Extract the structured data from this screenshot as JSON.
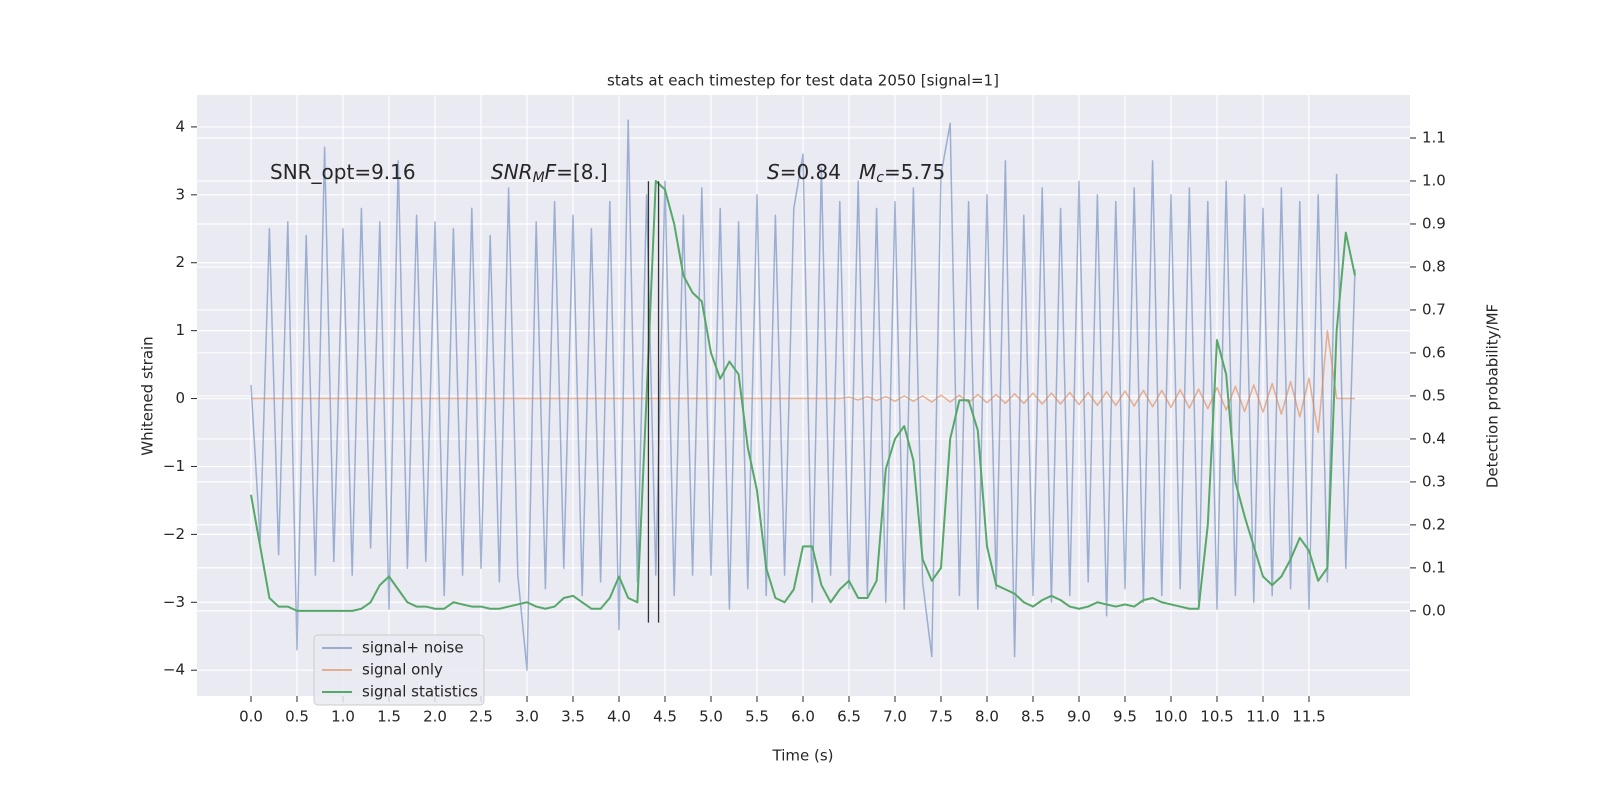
{
  "chart_data": {
    "type": "line",
    "title": "stats at each timestep for test data 2050 [signal=1]",
    "xlabel": "Time (s)",
    "ylabel": "Whitened strain",
    "y2label": "Detection probability/MF",
    "x": [
      0,
      0.1,
      0.2,
      0.3,
      0.4,
      0.5,
      0.6,
      0.7,
      0.8,
      0.9,
      1,
      1.1,
      1.2,
      1.3,
      1.4,
      1.5,
      1.6,
      1.7,
      1.8,
      1.9,
      2,
      2.1,
      2.2,
      2.3,
      2.4,
      2.5,
      2.6,
      2.7,
      2.8,
      2.9,
      3,
      3.1,
      3.2,
      3.3,
      3.4,
      3.5,
      3.6,
      3.7,
      3.8,
      3.9,
      4,
      4.1,
      4.2,
      4.3,
      4.4,
      4.5,
      4.6,
      4.7,
      4.8,
      4.9,
      5,
      5.1,
      5.2,
      5.3,
      5.4,
      5.5,
      5.6,
      5.7,
      5.8,
      5.9,
      6,
      6.1,
      6.2,
      6.3,
      6.4,
      6.5,
      6.6,
      6.7,
      6.8,
      6.9,
      7,
      7.1,
      7.2,
      7.3,
      7.4,
      7.5,
      7.6,
      7.7,
      7.8,
      7.9,
      8,
      8.1,
      8.2,
      8.3,
      8.4,
      8.5,
      8.6,
      8.7,
      8.8,
      8.9,
      9,
      9.1,
      9.2,
      9.3,
      9.4,
      9.5,
      9.6,
      9.7,
      9.8,
      9.9,
      10,
      10.1,
      10.2,
      10.3,
      10.4,
      10.5,
      10.6,
      10.7,
      10.8,
      10.9,
      11,
      11.1,
      11.2,
      11.3,
      11.4,
      11.5,
      11.6,
      11.7,
      11.8,
      11.9,
      12
    ],
    "series": [
      {
        "name": "signal+ noise",
        "color": "#4c72b0",
        "alpha": 0.5,
        "values": [
          0.2,
          -2.1,
          2.5,
          -2.3,
          2.6,
          -3.7,
          2.4,
          -2.6,
          3.7,
          -2.4,
          2.5,
          -2.6,
          2.8,
          -2.2,
          2.6,
          -3.1,
          3.5,
          -2.5,
          2.7,
          -2.4,
          2.6,
          -2.9,
          2.5,
          -2.6,
          2.8,
          -2.5,
          2.4,
          -2.7,
          3.1,
          -2.6,
          -4.0,
          2.6,
          -2.8,
          2.9,
          -2.5,
          2.7,
          -2.9,
          2.5,
          -2.7,
          2.9,
          -3.4,
          4.1,
          -2.7,
          3.0,
          -2.6,
          3.2,
          -2.9,
          2.7,
          -2.6,
          3.1,
          -2.6,
          2.8,
          -3.1,
          2.6,
          -2.8,
          3.0,
          -2.9,
          2.7,
          -2.6,
          2.8,
          3.6,
          -3.0,
          3.4,
          -2.6,
          2.9,
          -2.8,
          3.2,
          -2.9,
          2.8,
          -3.0,
          2.9,
          -3.1,
          3.1,
          -2.7,
          -3.8,
          3.3,
          4.05,
          -2.9,
          2.9,
          -3.1,
          3.0,
          -2.8,
          3.5,
          -3.8,
          2.7,
          -2.9,
          3.1,
          -3.0,
          2.8,
          -2.9,
          3.2,
          -2.7,
          3.0,
          -3.2,
          2.9,
          -2.8,
          3.1,
          -3.0,
          3.5,
          -2.9,
          3.0,
          -2.8,
          3.1,
          -3.0,
          2.9,
          -3.1,
          3.2,
          -2.9,
          3.0,
          -3.0,
          2.8,
          -2.9,
          3.1,
          -2.8,
          2.9,
          -3.1,
          3.0,
          -2.7,
          3.3,
          -2.5,
          1.9
        ]
      },
      {
        "name": "signal only",
        "color": "#dd8452",
        "alpha": 0.6,
        "values": [
          0,
          0,
          0,
          0,
          0,
          0,
          0,
          0,
          0,
          0,
          0,
          0,
          0,
          0,
          0,
          0,
          0,
          0,
          0,
          0,
          0,
          0,
          0,
          0,
          0,
          0,
          0,
          0,
          0,
          0,
          0,
          0,
          0,
          0,
          0,
          0,
          0,
          0,
          0,
          0,
          0,
          0,
          0,
          0,
          0,
          0,
          0,
          0,
          0,
          0,
          0,
          0,
          0,
          0,
          0,
          0,
          0,
          0,
          0,
          0,
          0,
          0,
          0,
          0,
          0,
          0.02,
          -0.02,
          0.03,
          -0.03,
          0.03,
          -0.04,
          0.04,
          -0.04,
          0.04,
          -0.05,
          0.05,
          -0.05,
          0.05,
          -0.06,
          0.06,
          -0.06,
          0.06,
          -0.07,
          0.07,
          -0.07,
          0.08,
          -0.08,
          0.08,
          -0.08,
          0.09,
          -0.09,
          0.09,
          -0.1,
          0.1,
          -0.1,
          0.11,
          -0.11,
          0.12,
          -0.12,
          0.12,
          -0.13,
          0.13,
          -0.14,
          0.14,
          -0.15,
          0.16,
          -0.17,
          0.18,
          -0.19,
          0.2,
          -0.2,
          0.22,
          -0.23,
          0.25,
          -0.27,
          0.3,
          -0.5,
          1.0,
          0,
          0,
          0
        ]
      },
      {
        "name": "signal statistics",
        "color": "#55a868",
        "alpha": 1,
        "axis": "y2",
        "values": [
          0.27,
          0.15,
          0.03,
          0.01,
          0.01,
          0.0,
          0.0,
          0.0,
          0.0,
          0.0,
          0.0,
          0.0,
          0.005,
          0.02,
          0.06,
          0.08,
          0.05,
          0.02,
          0.01,
          0.01,
          0.005,
          0.005,
          0.02,
          0.015,
          0.01,
          0.01,
          0.005,
          0.005,
          0.01,
          0.015,
          0.02,
          0.01,
          0.005,
          0.01,
          0.03,
          0.035,
          0.02,
          0.005,
          0.005,
          0.03,
          0.08,
          0.03,
          0.02,
          0.5,
          1.0,
          0.98,
          0.9,
          0.78,
          0.74,
          0.72,
          0.6,
          0.54,
          0.58,
          0.55,
          0.38,
          0.28,
          0.1,
          0.03,
          0.02,
          0.05,
          0.15,
          0.15,
          0.06,
          0.02,
          0.05,
          0.07,
          0.03,
          0.03,
          0.07,
          0.33,
          0.4,
          0.43,
          0.35,
          0.12,
          0.07,
          0.1,
          0.4,
          0.49,
          0.49,
          0.42,
          0.15,
          0.06,
          0.05,
          0.04,
          0.02,
          0.01,
          0.025,
          0.035,
          0.025,
          0.01,
          0.005,
          0.01,
          0.02,
          0.015,
          0.01,
          0.015,
          0.01,
          0.025,
          0.03,
          0.02,
          0.015,
          0.01,
          0.005,
          0.005,
          0.2,
          0.63,
          0.55,
          0.3,
          0.22,
          0.15,
          0.08,
          0.06,
          0.08,
          0.12,
          0.17,
          0.14,
          0.07,
          0.1,
          0.65,
          0.88,
          0.78
        ]
      }
    ],
    "vlines": {
      "x": [
        4.32,
        4.43
      ],
      "ymin": -3.3,
      "ymax": 3.2,
      "color": "#333333"
    },
    "annotations": [
      [
        {
          "text": "SNR_opt=9.16"
        }
      ],
      [
        {
          "text": "SNR",
          "italic": true
        },
        {
          "text": "M",
          "italic": true,
          "sub": true
        },
        {
          "text": "F",
          "italic": true
        },
        {
          "text": "=[8.]"
        }
      ],
      [
        {
          "text": "S",
          "italic": true
        },
        {
          "text": "=0.84"
        }
      ],
      [
        {
          "text": "M",
          "italic": true
        },
        {
          "text": "c",
          "italic": true,
          "sub": true
        },
        {
          "text": "=5.75"
        }
      ]
    ],
    "xlim": [
      -0.587,
      12.598
    ],
    "xticks": [
      {
        "value": 0,
        "label": "0.0"
      },
      0.5,
      {
        "value": 1,
        "label": "1.0"
      },
      1.5,
      {
        "value": 2,
        "label": "2.0"
      },
      2.5,
      {
        "value": 3,
        "label": "3.0"
      },
      3.5,
      {
        "value": 4,
        "label": "4.0"
      },
      4.5,
      {
        "value": 5,
        "label": "5.0"
      },
      5.5,
      {
        "value": 6,
        "label": "6.0"
      },
      6.5,
      {
        "value": 7,
        "label": "7.0"
      },
      7.5,
      {
        "value": 8,
        "label": "8.0"
      },
      8.5,
      {
        "value": 9,
        "label": "9.0"
      },
      9.5,
      {
        "value": 10,
        "label": "10.0"
      },
      10.5,
      {
        "value": 11,
        "label": "11.0"
      },
      11.5
    ],
    "ylim": [
      -4.38,
      4.47
    ],
    "yticks": [
      {
        "value": -4,
        "label": "−4"
      },
      {
        "value": -3,
        "label": "−3"
      },
      {
        "value": -2,
        "label": "−2"
      },
      {
        "value": -1,
        "label": "−1"
      },
      0,
      1,
      2,
      3,
      4
    ],
    "y2lim": [
      -0.198,
      1.2
    ],
    "y2ticks": [
      {
        "value": 0,
        "label": "0.0"
      },
      0.1,
      0.2,
      0.3,
      0.4,
      0.5,
      0.6,
      0.7,
      0.8,
      0.9,
      {
        "value": 1,
        "label": "1.0"
      },
      1.1
    ],
    "grid": true,
    "legend": "lower left"
  }
}
